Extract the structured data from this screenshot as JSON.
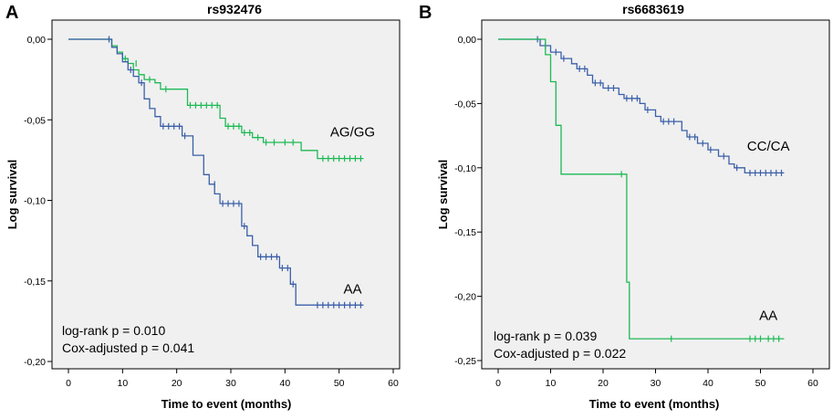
{
  "chart_data": [
    {
      "type": "line",
      "panel_label": "A",
      "title": "rs932476",
      "xlabel": "Time to event (months)",
      "ylabel": "Log survival",
      "xlim": [
        0,
        60
      ],
      "ylim": [
        -0.2,
        0.0
      ],
      "x_ticks": [
        0,
        10,
        20,
        30,
        40,
        50,
        60
      ],
      "x_tick_labels": [
        "0",
        "10",
        "20",
        "30",
        "40",
        "50",
        "60"
      ],
      "y_ticks": [
        0.0,
        -0.05,
        -0.1,
        -0.15,
        -0.2
      ],
      "y_tick_labels": [
        "0,00",
        "-0,05",
        "-0,10",
        "-0,15",
        "-0,20"
      ],
      "stats": [
        "log-rank p = 0.010",
        "Cox-adjusted p = 0.041"
      ],
      "series": [
        {
          "name": "AG/GG",
          "color": "#1db954",
          "label_pos": [
            52.5,
            -0.0575
          ],
          "steps": [
            [
              0,
              0
            ],
            [
              7,
              0
            ],
            [
              8,
              -0.004
            ],
            [
              9,
              -0.008
            ],
            [
              10,
              -0.012
            ],
            [
              11,
              -0.015
            ],
            [
              12,
              -0.019
            ],
            [
              13,
              -0.022
            ],
            [
              14,
              -0.025
            ],
            [
              16,
              -0.027
            ],
            [
              17,
              -0.031
            ],
            [
              22,
              -0.041
            ],
            [
              25,
              -0.041
            ],
            [
              28,
              -0.049
            ],
            [
              29,
              -0.054
            ],
            [
              32,
              -0.058
            ],
            [
              34,
              -0.061
            ],
            [
              36,
              -0.064
            ],
            [
              43,
              -0.069
            ],
            [
              46,
              -0.074
            ],
            [
              54.5,
              -0.074
            ]
          ],
          "censors": [
            [
              7.5,
              0
            ],
            [
              10.5,
              -0.012
            ],
            [
              12.5,
              -0.015
            ],
            [
              15,
              -0.025
            ],
            [
              18,
              -0.031
            ],
            [
              22.5,
              -0.041
            ],
            [
              23.5,
              -0.041
            ],
            [
              24.5,
              -0.041
            ],
            [
              25.5,
              -0.041
            ],
            [
              26.5,
              -0.041
            ],
            [
              27.5,
              -0.041
            ],
            [
              29.5,
              -0.054
            ],
            [
              30.5,
              -0.054
            ],
            [
              31.5,
              -0.054
            ],
            [
              32.5,
              -0.058
            ],
            [
              33.5,
              -0.058
            ],
            [
              35,
              -0.061
            ],
            [
              36.5,
              -0.064
            ],
            [
              38,
              -0.064
            ],
            [
              40,
              -0.064
            ],
            [
              41.5,
              -0.064
            ],
            [
              47,
              -0.074
            ],
            [
              48,
              -0.074
            ],
            [
              49,
              -0.074
            ],
            [
              50,
              -0.074
            ],
            [
              51,
              -0.074
            ],
            [
              52,
              -0.074
            ],
            [
              53,
              -0.074
            ],
            [
              54,
              -0.074
            ]
          ]
        },
        {
          "name": "AA",
          "color": "#3a5fa8",
          "label_pos": [
            52.5,
            -0.155
          ],
          "steps": [
            [
              0,
              0
            ],
            [
              7,
              0
            ],
            [
              8,
              -0.005
            ],
            [
              9,
              -0.009
            ],
            [
              10,
              -0.014
            ],
            [
              11,
              -0.019
            ],
            [
              12,
              -0.023
            ],
            [
              13,
              -0.027
            ],
            [
              14,
              -0.037
            ],
            [
              15,
              -0.043
            ],
            [
              16,
              -0.048
            ],
            [
              17,
              -0.054
            ],
            [
              21,
              -0.06
            ],
            [
              23,
              -0.072
            ],
            [
              25,
              -0.084
            ],
            [
              26,
              -0.09
            ],
            [
              27,
              -0.096
            ],
            [
              28,
              -0.102
            ],
            [
              32,
              -0.116
            ],
            [
              33,
              -0.122
            ],
            [
              34,
              -0.128
            ],
            [
              35,
              -0.135
            ],
            [
              39,
              -0.142
            ],
            [
              41,
              -0.152
            ],
            [
              42,
              -0.165
            ],
            [
              54.5,
              -0.165
            ]
          ],
          "censors": [
            [
              7.5,
              0
            ],
            [
              11.5,
              -0.019
            ],
            [
              13.5,
              -0.027
            ],
            [
              17.5,
              -0.054
            ],
            [
              18.5,
              -0.054
            ],
            [
              19.5,
              -0.054
            ],
            [
              20.5,
              -0.054
            ],
            [
              21.5,
              -0.06
            ],
            [
              27,
              -0.09
            ],
            [
              28.5,
              -0.102
            ],
            [
              29.5,
              -0.102
            ],
            [
              30.5,
              -0.102
            ],
            [
              31.5,
              -0.102
            ],
            [
              32.5,
              -0.116
            ],
            [
              35.5,
              -0.135
            ],
            [
              36.5,
              -0.135
            ],
            [
              37.5,
              -0.135
            ],
            [
              38.5,
              -0.135
            ],
            [
              39.5,
              -0.142
            ],
            [
              40.5,
              -0.142
            ],
            [
              41.5,
              -0.152
            ],
            [
              46,
              -0.165
            ],
            [
              47,
              -0.165
            ],
            [
              48,
              -0.165
            ],
            [
              49,
              -0.165
            ],
            [
              50,
              -0.165
            ],
            [
              51,
              -0.165
            ],
            [
              52,
              -0.165
            ],
            [
              53,
              -0.165
            ],
            [
              54,
              -0.165
            ]
          ]
        }
      ]
    },
    {
      "type": "line",
      "panel_label": "B",
      "title": "rs6683619",
      "xlabel": "Time to event (months)",
      "ylabel": "Log survival",
      "xlim": [
        0,
        60
      ],
      "ylim": [
        -0.25,
        0.0
      ],
      "x_ticks": [
        0,
        10,
        20,
        30,
        40,
        50,
        60
      ],
      "x_tick_labels": [
        "0",
        "10",
        "20",
        "30",
        "40",
        "50",
        "60"
      ],
      "y_ticks": [
        0.0,
        -0.05,
        -0.1,
        -0.15,
        -0.2,
        -0.25
      ],
      "y_tick_labels": [
        "0,00",
        "-0,05",
        "-0,10",
        "-0,15",
        "-0,20",
        "-0,25"
      ],
      "stats": [
        "log-rank p = 0.039",
        "Cox-adjusted p = 0.022"
      ],
      "series": [
        {
          "name": "CC/CA",
          "color": "#3a5fa8",
          "label_pos": [
            51.5,
            -0.083
          ],
          "steps": [
            [
              0,
              0
            ],
            [
              7,
              0
            ],
            [
              8,
              -0.005
            ],
            [
              10,
              -0.01
            ],
            [
              12,
              -0.015
            ],
            [
              14,
              -0.019
            ],
            [
              15,
              -0.023
            ],
            [
              17,
              -0.028
            ],
            [
              18,
              -0.034
            ],
            [
              20,
              -0.038
            ],
            [
              23,
              -0.043
            ],
            [
              24,
              -0.046
            ],
            [
              27,
              -0.05
            ],
            [
              28,
              -0.055
            ],
            [
              30,
              -0.06
            ],
            [
              31,
              -0.064
            ],
            [
              35,
              -0.071
            ],
            [
              36,
              -0.076
            ],
            [
              38,
              -0.081
            ],
            [
              40,
              -0.086
            ],
            [
              42,
              -0.091
            ],
            [
              44,
              -0.097
            ],
            [
              45,
              -0.1
            ],
            [
              47,
              -0.104
            ],
            [
              54.5,
              -0.104
            ]
          ],
          "censors": [
            [
              7.5,
              0
            ],
            [
              9,
              -0.005
            ],
            [
              11,
              -0.01
            ],
            [
              12.5,
              -0.015
            ],
            [
              15.5,
              -0.023
            ],
            [
              16.5,
              -0.023
            ],
            [
              18.5,
              -0.034
            ],
            [
              19.5,
              -0.034
            ],
            [
              21,
              -0.038
            ],
            [
              22,
              -0.038
            ],
            [
              24.5,
              -0.046
            ],
            [
              25.5,
              -0.046
            ],
            [
              26.5,
              -0.046
            ],
            [
              28.5,
              -0.055
            ],
            [
              31.5,
              -0.064
            ],
            [
              32.5,
              -0.064
            ],
            [
              33.5,
              -0.064
            ],
            [
              36.5,
              -0.076
            ],
            [
              37.5,
              -0.076
            ],
            [
              39,
              -0.081
            ],
            [
              40.5,
              -0.086
            ],
            [
              43,
              -0.091
            ],
            [
              45.5,
              -0.1
            ],
            [
              48,
              -0.104
            ],
            [
              49,
              -0.104
            ],
            [
              50,
              -0.104
            ],
            [
              51,
              -0.104
            ],
            [
              52,
              -0.104
            ],
            [
              53,
              -0.104
            ],
            [
              54,
              -0.104
            ]
          ]
        },
        {
          "name": "AA",
          "color": "#1db954",
          "label_pos": [
            51.5,
            -0.215
          ],
          "steps": [
            [
              0,
              0
            ],
            [
              8,
              0
            ],
            [
              9,
              -0.012
            ],
            [
              10,
              -0.033
            ],
            [
              11,
              -0.067
            ],
            [
              12,
              -0.105
            ],
            [
              24,
              -0.105
            ],
            [
              24.5,
              -0.189
            ],
            [
              25,
              -0.233
            ],
            [
              54.5,
              -0.233
            ]
          ],
          "censors": [
            [
              23.5,
              -0.105
            ],
            [
              33,
              -0.233
            ],
            [
              48,
              -0.233
            ],
            [
              49,
              -0.233
            ],
            [
              50,
              -0.233
            ],
            [
              51.5,
              -0.233
            ],
            [
              52.5,
              -0.233
            ],
            [
              53.5,
              -0.233
            ]
          ]
        }
      ]
    }
  ]
}
